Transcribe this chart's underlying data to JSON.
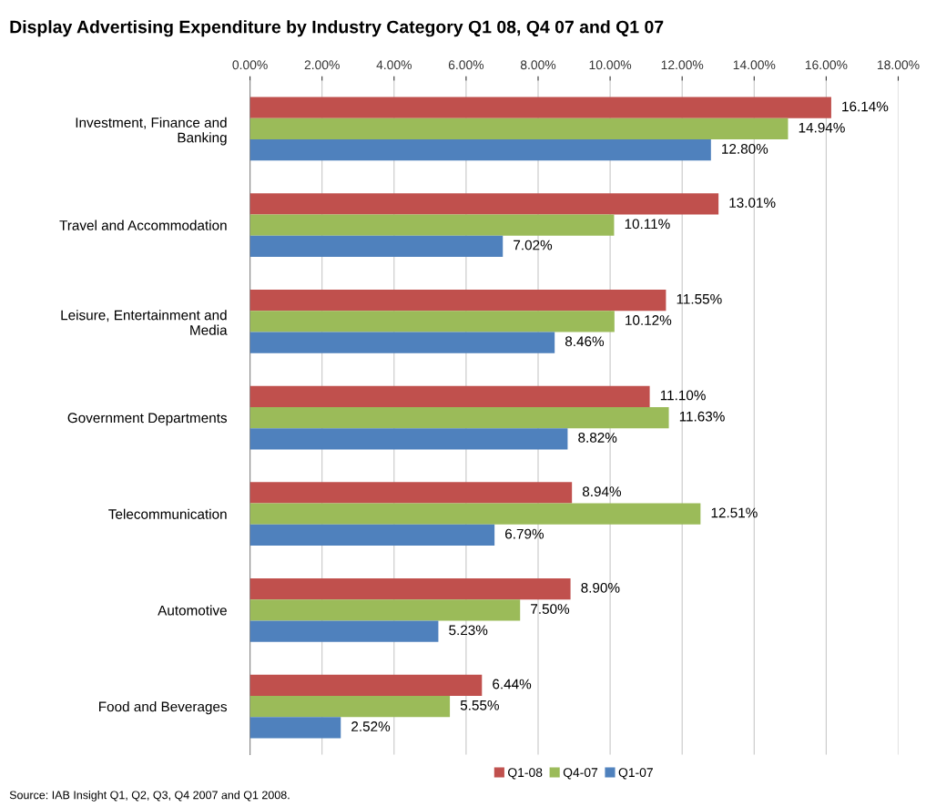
{
  "chart_data": {
    "type": "bar",
    "orientation": "horizontal",
    "title": "Display Advertising Expenditure by Industry Category Q1 08, Q4 07 and Q1 07",
    "categories": [
      "Investment, Finance and\nBanking",
      "Travel and Accommodation",
      "Leisure, Entertainment and\nMedia",
      "Government Departments",
      "Telecommunication",
      "Automotive",
      "Food and Beverages"
    ],
    "series": [
      {
        "name": "Q1-08",
        "color": "#c0504d",
        "values": [
          16.14,
          13.01,
          11.55,
          11.1,
          8.94,
          8.9,
          6.44
        ],
        "value_labels": [
          "16.14%",
          "13.01%",
          "11.55%",
          "11.10%",
          "8.94%",
          "8.90%",
          "6.44%"
        ]
      },
      {
        "name": "Q4-07",
        "color": "#9bbb59",
        "values": [
          14.94,
          10.11,
          10.12,
          11.63,
          12.51,
          7.5,
          5.55
        ],
        "value_labels": [
          "14.94%",
          "10.11%",
          "10.12%",
          "11.63%",
          "12.51%",
          "7.50%",
          "5.55%"
        ]
      },
      {
        "name": "Q1-07",
        "color": "#4f81bd",
        "values": [
          12.8,
          7.02,
          8.46,
          8.82,
          6.79,
          5.23,
          2.52
        ],
        "value_labels": [
          "12.80%",
          "7.02%",
          "8.46%",
          "8.82%",
          "6.79%",
          "5.23%",
          "2.52%"
        ]
      }
    ],
    "xlim": [
      0,
      18
    ],
    "xticks": [
      {
        "value": 0,
        "label": "0.00%"
      },
      {
        "value": 2,
        "label": "2.00%"
      },
      {
        "value": 4,
        "label": "4.00%"
      },
      {
        "value": 6,
        "label": "6.00%"
      },
      {
        "value": 8,
        "label": "8.00%"
      },
      {
        "value": 10,
        "label": "10.00%"
      },
      {
        "value": 12,
        "label": "12.00%"
      },
      {
        "value": 14,
        "label": "14.00%"
      },
      {
        "value": 16,
        "label": "16.00%"
      },
      {
        "value": 18,
        "label": "18.00%"
      }
    ],
    "grid": "x",
    "legend": "bottom",
    "annotations": [
      "Source: IAB Insight Q1, Q2, Q3, Q4 2007 and Q1 2008."
    ]
  }
}
